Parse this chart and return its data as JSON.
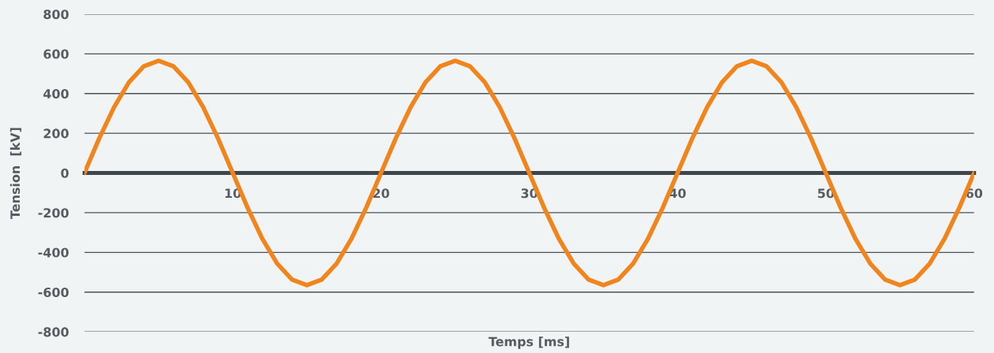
{
  "chart_data": {
    "type": "line",
    "xlabel": "Temps [ms]",
    "ylabel": "Tension  [kV]",
    "x": [
      0,
      1,
      2,
      3,
      4,
      5,
      6,
      7,
      8,
      9,
      10,
      11,
      12,
      13,
      14,
      15,
      16,
      17,
      18,
      19,
      20,
      21,
      22,
      23,
      24,
      25,
      26,
      27,
      28,
      29,
      30,
      31,
      32,
      33,
      34,
      35,
      36,
      37,
      38,
      39,
      40,
      41,
      42,
      43,
      44,
      45,
      46,
      47,
      48,
      49,
      50,
      51,
      52,
      53,
      54,
      55,
      56,
      57,
      58,
      59,
      60
    ],
    "series": [
      {
        "color": "#f0851e",
        "values": [
          0,
          175,
          332,
          457,
          537,
          565,
          537,
          457,
          332,
          175,
          0,
          -175,
          -332,
          -457,
          -537,
          -565,
          -537,
          -457,
          -332,
          -175,
          0,
          175,
          332,
          457,
          537,
          565,
          537,
          457,
          332,
          175,
          0,
          -175,
          -332,
          -457,
          -537,
          -565,
          -537,
          -457,
          -332,
          -175,
          0,
          175,
          332,
          457,
          537,
          565,
          537,
          457,
          332,
          175,
          0,
          -175,
          -332,
          -457,
          -537,
          -565,
          -537,
          -457,
          -332,
          -175,
          0
        ]
      }
    ],
    "xlim": [
      0,
      60
    ],
    "xticks": [
      10,
      20,
      30,
      40,
      50,
      60
    ],
    "ylim": [
      -800,
      800
    ],
    "yticks": [
      -800,
      -600,
      -400,
      -200,
      0,
      200,
      400,
      600,
      800
    ],
    "grid": "y",
    "legend": false,
    "marker": "none",
    "line_style": "solid"
  }
}
